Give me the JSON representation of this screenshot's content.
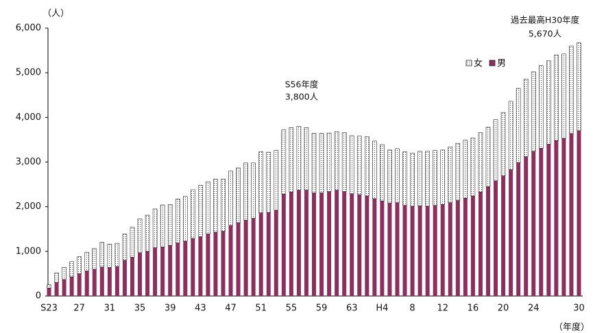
{
  "chart_data": {
    "type": "stacked-bar",
    "y_label": "（人）",
    "x_label": "（年度）",
    "categories": [
      "S23",
      null,
      null,
      null,
      "27",
      null,
      null,
      null,
      "31",
      null,
      null,
      null,
      "35",
      null,
      null,
      null,
      "39",
      null,
      null,
      null,
      "43",
      null,
      null,
      null,
      "47",
      null,
      null,
      null,
      "51",
      null,
      null,
      null,
      "55",
      null,
      null,
      null,
      "59",
      null,
      null,
      null,
      "63",
      null,
      null,
      null,
      "H4",
      null,
      null,
      null,
      "8",
      null,
      null,
      null,
      "12",
      null,
      null,
      null,
      "16",
      null,
      null,
      null,
      "20",
      null,
      null,
      null,
      "24",
      null,
      null,
      null,
      null,
      null,
      "30"
    ],
    "series": [
      {
        "name": "男",
        "color": "#8b2f5e",
        "values": [
          180,
          300,
          370,
          430,
          500,
          560,
          600,
          650,
          640,
          660,
          800,
          870,
          970,
          1000,
          1080,
          1100,
          1130,
          1190,
          1230,
          1290,
          1330,
          1390,
          1430,
          1450,
          1580,
          1640,
          1700,
          1740,
          1860,
          1870,
          1920,
          2280,
          2330,
          2370,
          2370,
          2310,
          2310,
          2340,
          2370,
          2340,
          2290,
          2270,
          2240,
          2180,
          2130,
          2080,
          2090,
          2030,
          2010,
          2020,
          2010,
          2030,
          2050,
          2090,
          2140,
          2190,
          2240,
          2330,
          2450,
          2580,
          2690,
          2830,
          2990,
          3120,
          3240,
          3310,
          3400,
          3480,
          3530,
          3640,
          3700
        ]
      },
      {
        "name": "女",
        "color": "#ffffff",
        "values": [
          70,
          220,
          270,
          340,
          380,
          420,
          460,
          550,
          520,
          520,
          590,
          670,
          760,
          810,
          870,
          940,
          920,
          980,
          1000,
          1090,
          1150,
          1170,
          1190,
          1170,
          1220,
          1230,
          1280,
          1240,
          1370,
          1350,
          1340,
          1440,
          1440,
          1430,
          1400,
          1330,
          1330,
          1310,
          1310,
          1320,
          1300,
          1310,
          1330,
          1290,
          1260,
          1190,
          1210,
          1200,
          1190,
          1220,
          1230,
          1230,
          1220,
          1250,
          1280,
          1300,
          1300,
          1330,
          1330,
          1370,
          1420,
          1530,
          1660,
          1740,
          1780,
          1850,
          1870,
          1920,
          1890,
          1960,
          1970
        ]
      }
    ],
    "annotations": [
      [
        "S56年度",
        "3,800人"
      ],
      [
        "過去最高H30年度",
        "5,670人"
      ]
    ],
    "ylim": [
      0,
      6000
    ],
    "yticks": [
      0,
      {
        "value": 1000,
        "label": "1,000"
      },
      {
        "value": 2000,
        "label": "2,000"
      },
      {
        "value": 3000,
        "label": "3,000"
      },
      {
        "value": 4000,
        "label": "4,000"
      },
      {
        "value": 5000,
        "label": "5,000"
      },
      {
        "value": 6000,
        "label": "6,000"
      }
    ],
    "legend": "top-right",
    "grid": false
  }
}
